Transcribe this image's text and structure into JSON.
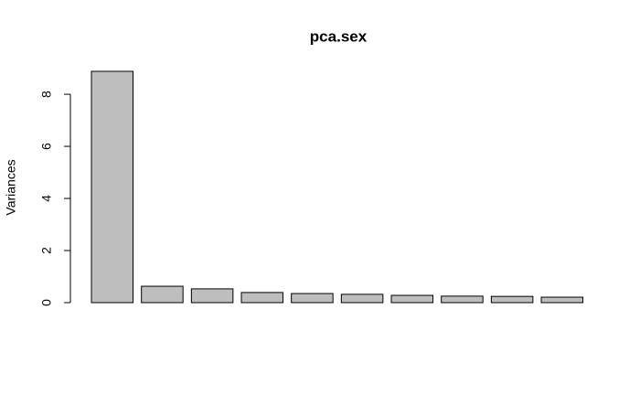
{
  "chart_data": {
    "type": "bar",
    "title": "pca.sex",
    "ylabel": "Variances",
    "categories": [
      null,
      null,
      null,
      null,
      null,
      null,
      null,
      null,
      null,
      null
    ],
    "values": [
      8.88,
      0.63,
      0.53,
      0.39,
      0.35,
      0.32,
      0.28,
      0.25,
      0.24,
      0.21
    ],
    "color": "#bebebe",
    "ylim": [
      0,
      8.88
    ],
    "yticks": [
      0,
      2,
      4,
      6,
      8
    ],
    "grid": false
  }
}
